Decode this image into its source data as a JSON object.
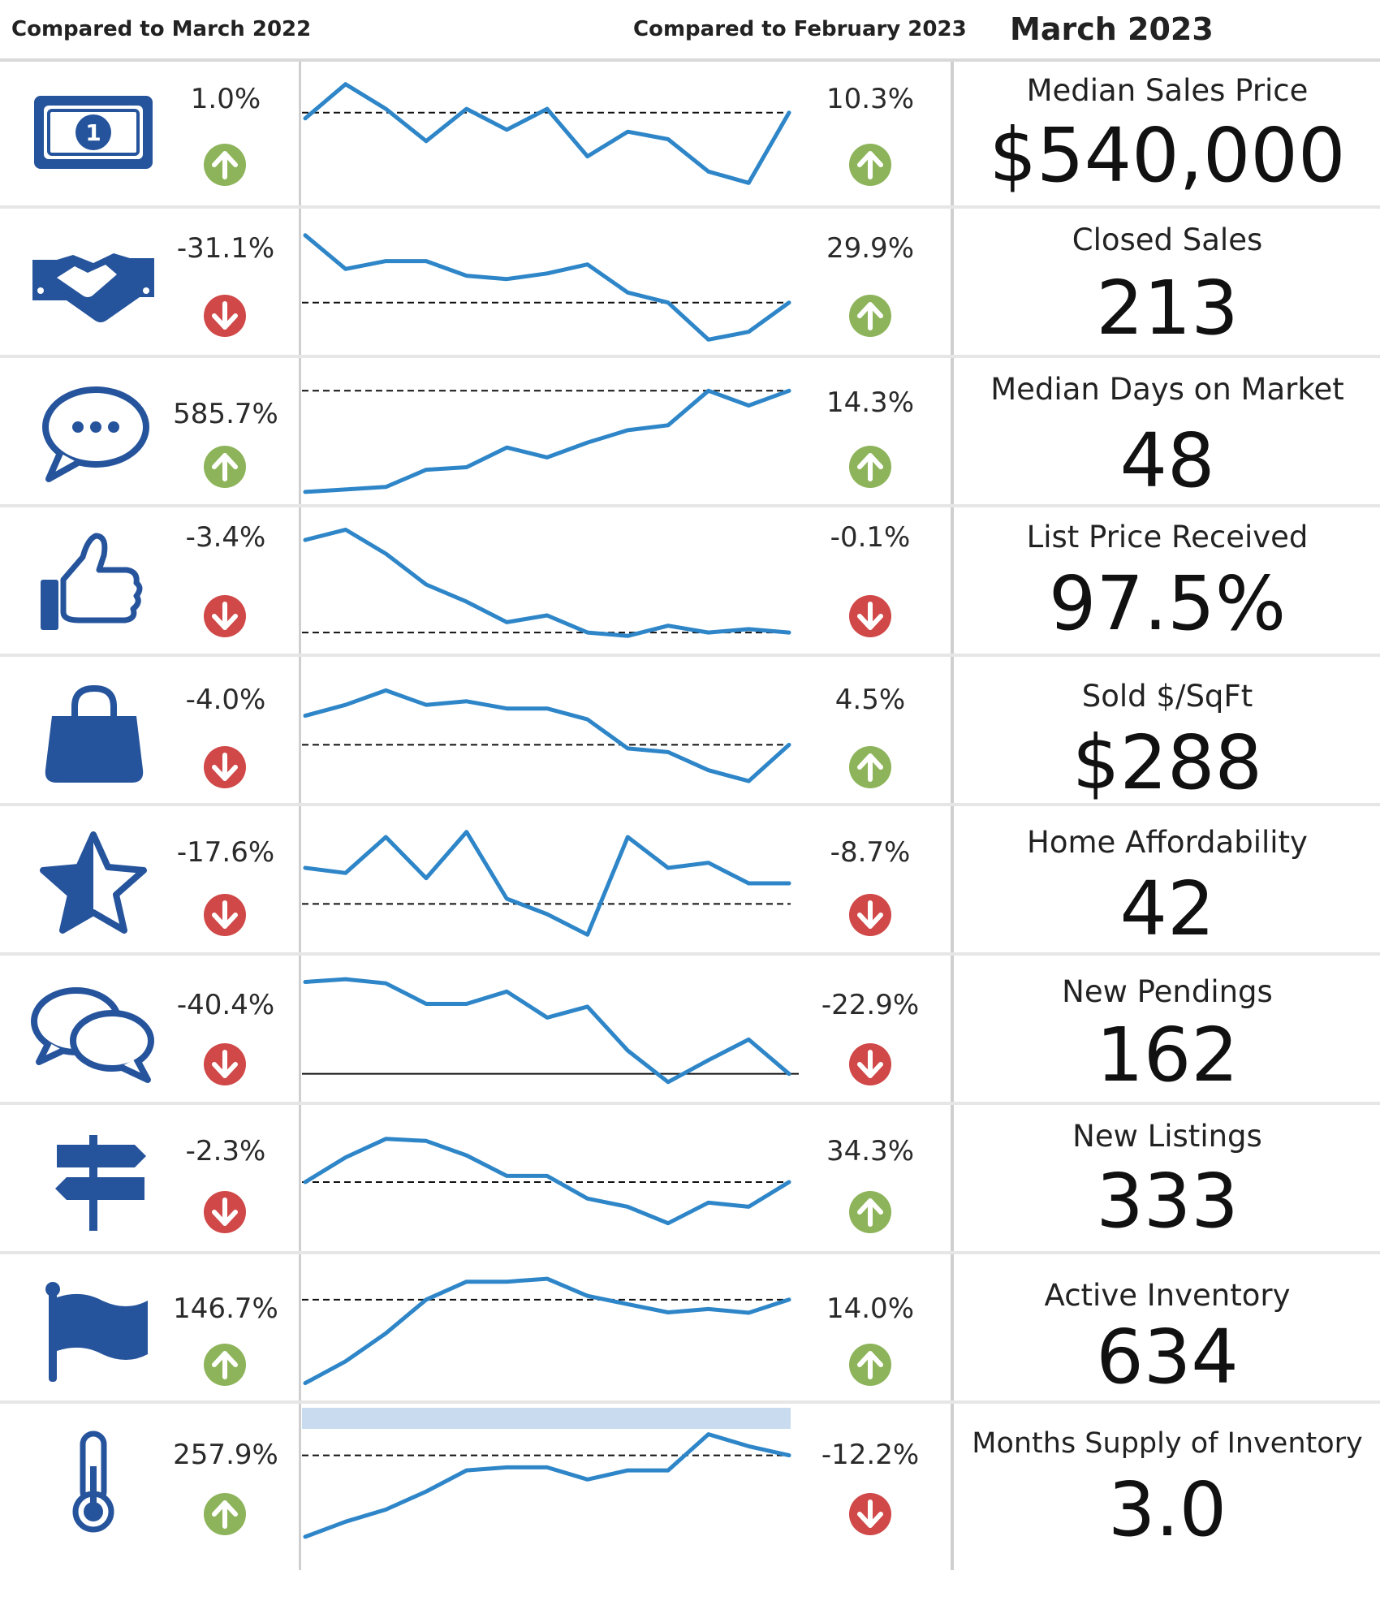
{
  "header": {
    "compared_yoy": "Compared to March 2022",
    "compared_mom": "Compared to February 2023",
    "month": "March 2023"
  },
  "colors": {
    "icon_blue": "#26549c",
    "line_blue": "#2e86c8",
    "up_green": "#8db45a",
    "down_red": "#d04848",
    "highlight_band": "#c9dbef"
  },
  "chart_data": {
    "type": "line",
    "x_points": 13,
    "rows": [
      {
        "metric": "Median Sales Price",
        "value": "$540,000",
        "yoy": "1.0%",
        "yoy_dir": "up",
        "mom": "10.3%",
        "mom_dir": "up",
        "icon": "dollar-bill-icon",
        "values": [
          92,
          110,
          97,
          80,
          97,
          86,
          97,
          72,
          85,
          81,
          64,
          58,
          95
        ],
        "ref": 95,
        "ylim": [
          50,
          115
        ],
        "ref_style": "dashed"
      },
      {
        "metric": "Closed Sales",
        "value": "213",
        "yoy": "-31.1%",
        "yoy_dir": "down",
        "mom": "29.9%",
        "mom_dir": "up",
        "icon": "handshake-icon",
        "values": [
          300,
          270,
          277,
          277,
          264,
          261,
          266,
          274,
          249,
          240,
          207,
          214,
          240
        ],
        "ref": 240,
        "ylim": [
          200,
          310
        ],
        "ref_style": "dashed"
      },
      {
        "metric": "Median Days on Market",
        "value": "48",
        "yoy": "585.7%",
        "yoy_dir": "up",
        "mom": "14.3%",
        "mom_dir": "up",
        "icon": "speech-bubble-icon",
        "values": [
          7,
          8,
          9,
          16,
          17,
          25,
          21,
          27,
          32,
          34,
          48,
          42,
          48
        ],
        "ref": 48,
        "ylim": [
          5,
          55
        ],
        "ref_style": "dashed"
      },
      {
        "metric": "List Price Received",
        "value": "97.5%",
        "yoy": "-3.4%",
        "yoy_dir": "down",
        "mom": "-0.1%",
        "mom_dir": "down",
        "icon": "thumbs-up-icon",
        "values": [
          100.9,
          101.2,
          100.5,
          99.6,
          99.1,
          98.5,
          98.7,
          98.2,
          98.1,
          98.4,
          98.2,
          98.3,
          98.2
        ],
        "ref": 98.2,
        "ylim": [
          97.8,
          101.4
        ],
        "ref_style": "dashed"
      },
      {
        "metric": "Sold $/SqFt",
        "value": "$288",
        "yoy": "-4.0%",
        "yoy_dir": "down",
        "mom": "4.5%",
        "mom_dir": "up",
        "icon": "shopping-bag-icon",
        "values": [
          300,
          303,
          307,
          303,
          304,
          302,
          302,
          299,
          291,
          290,
          285,
          282,
          292
        ],
        "ref": 292,
        "ylim": [
          278,
          312
        ],
        "ref_style": "dashed"
      },
      {
        "metric": "Home Affordability",
        "value": "42",
        "yoy": "-17.6%",
        "yoy_dir": "down",
        "mom": "-8.7%",
        "mom_dir": "down",
        "icon": "half-star-icon",
        "values": [
          49,
          48,
          55,
          47,
          56,
          43,
          40,
          36,
          55,
          49,
          50,
          46,
          46
        ],
        "ref": 42,
        "ylim": [
          34,
          58
        ],
        "ref_style": "dashed"
      },
      {
        "metric": "New Pendings",
        "value": "162",
        "yoy": "-40.4%",
        "yoy_dir": "down",
        "mom": "-22.9%",
        "mom_dir": "down",
        "icon": "chat-bubbles-icon",
        "values": [
          272,
          274,
          271,
          256,
          256,
          265,
          246,
          254,
          222,
          199,
          215,
          230,
          205
        ],
        "ref": 205,
        "ylim": [
          190,
          280
        ],
        "ref_style": "solid"
      },
      {
        "metric": "New Listings",
        "value": "333",
        "yoy": "-2.3%",
        "yoy_dir": "down",
        "mom": "34.3%",
        "mom_dir": "up",
        "icon": "signpost-icon",
        "values": [
          330,
          342,
          351,
          350,
          343,
          333,
          333,
          322,
          318,
          310,
          320,
          318,
          330
        ],
        "ref": 330,
        "ylim": [
          300,
          360
        ],
        "ref_style": "dashed"
      },
      {
        "metric": "Active Inventory",
        "value": "634",
        "yoy": "146.7%",
        "yoy_dir": "up",
        "mom": "14.0%",
        "mom_dir": "up",
        "icon": "flag-icon",
        "values": [
          257,
          315,
          390,
          480,
          528,
          528,
          536,
          490,
          468,
          446,
          455,
          445,
          480
        ],
        "ref": 480,
        "ylim": [
          230,
          560
        ],
        "ref_style": "dashed"
      },
      {
        "metric": "Months Supply of Inventory",
        "value": "3.0",
        "yoy": "257.9%",
        "yoy_dir": "up",
        "mom": "-12.2%",
        "mom_dir": "down",
        "icon": "thermometer-icon",
        "values": [
          0.85,
          1.1,
          1.3,
          1.6,
          1.95,
          2.0,
          2.0,
          1.8,
          1.95,
          1.95,
          2.55,
          2.35,
          2.2
        ],
        "ref": 2.2,
        "ylim": [
          0.7,
          2.8
        ],
        "ref_style": "dashed",
        "band": true
      }
    ]
  }
}
